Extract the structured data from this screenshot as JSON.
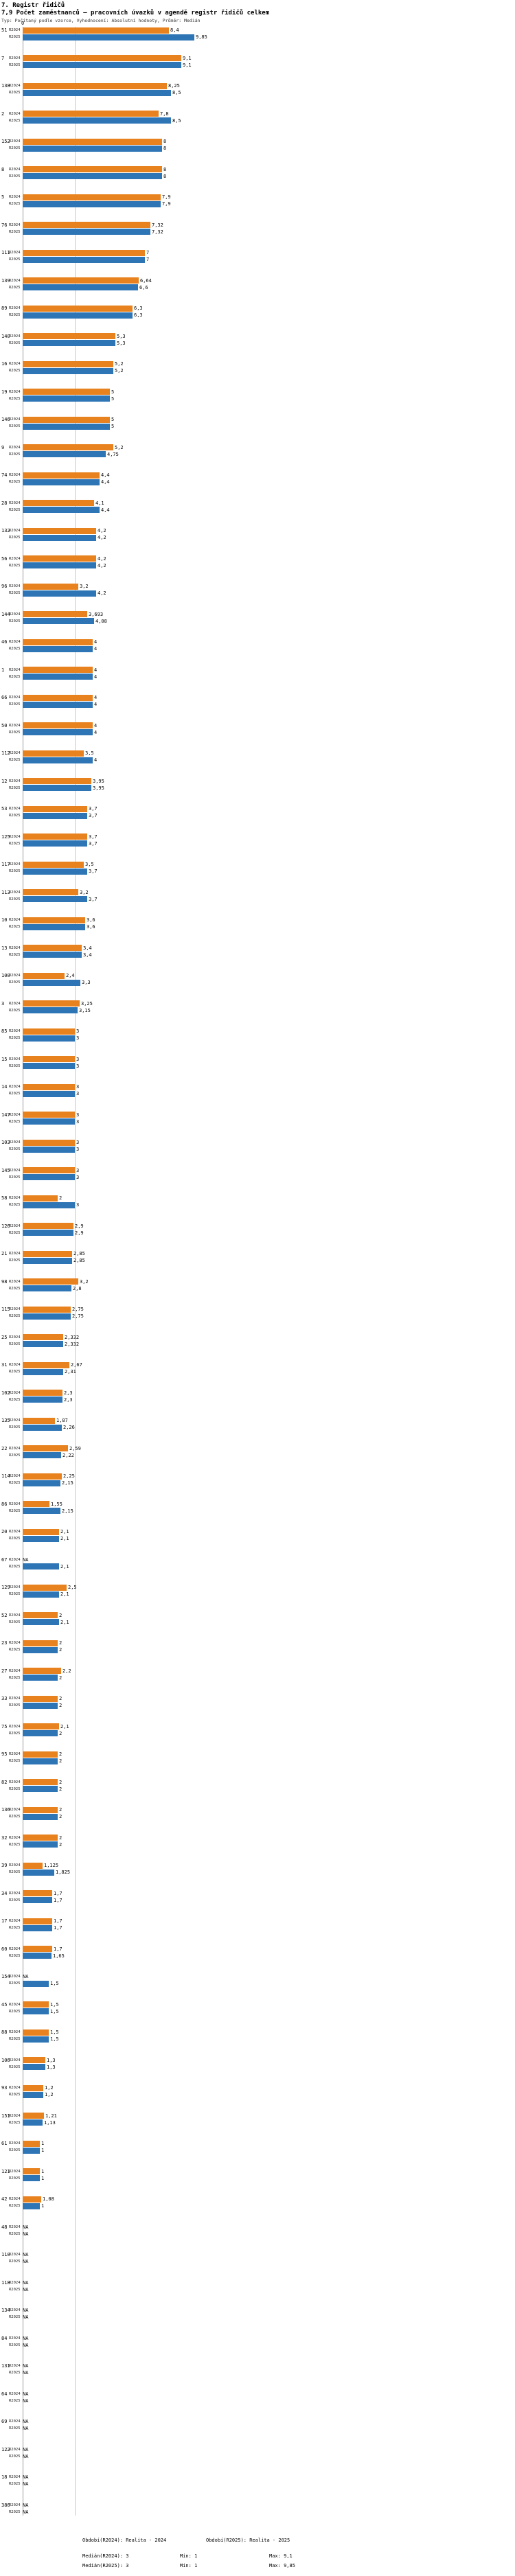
{
  "header": {
    "title": "7. Registr řidičů",
    "subtitle": "7,9 Počet zaměstnanců – pracovních úvazků v agendě registr řidičů celkem",
    "meta": "Typ: Počítaný podle vzorce, Vyhodnocení: Absolutní hodnoty, Průměr: Medián"
  },
  "chart_data": {
    "type": "bar",
    "orientation": "horizontal",
    "title": "7,9 Počet zaměstnanců – pracovních úvazků v agendě registr řidičů celkem",
    "xlabel": "",
    "ylabel": "",
    "xlim": [
      0,
      10
    ],
    "series_labels": [
      "R2024",
      "R2025"
    ],
    "colors": {
      "R2024": "#e8821e",
      "R2025": "#2e75b6"
    },
    "axis": {
      "origin_label": "0",
      "median_line_value": 3
    },
    "na_text": "NA",
    "groups": [
      {
        "id": "51",
        "r2024": "8,4",
        "r2025": "9,85"
      },
      {
        "id": "7",
        "r2024": "9,1",
        "r2025": "9,1"
      },
      {
        "id": "138",
        "r2024": "8,25",
        "r2025": "8,5"
      },
      {
        "id": "2",
        "r2024": "7,8",
        "r2025": "8,5"
      },
      {
        "id": "152",
        "r2024": "8",
        "r2025": "8"
      },
      {
        "id": "8",
        "r2024": "8",
        "r2025": "8"
      },
      {
        "id": "5",
        "r2024": "7,9",
        "r2025": "7,9"
      },
      {
        "id": "76",
        "r2024": "7,32",
        "r2025": "7,32"
      },
      {
        "id": "111",
        "r2024": "7",
        "r2025": "7"
      },
      {
        "id": "139",
        "r2024": "6,64",
        "r2025": "6,6"
      },
      {
        "id": "89",
        "r2024": "6,3",
        "r2025": "6,3"
      },
      {
        "id": "140",
        "r2024": "5,3",
        "r2025": "5,3"
      },
      {
        "id": "16",
        "r2024": "5,2",
        "r2025": "5,2"
      },
      {
        "id": "19",
        "r2024": "5",
        "r2025": "5"
      },
      {
        "id": "146",
        "r2024": "5",
        "r2025": "5"
      },
      {
        "id": "9",
        "r2024": "5,2",
        "r2025": "4,75"
      },
      {
        "id": "74",
        "r2024": "4,4",
        "r2025": "4,4"
      },
      {
        "id": "28",
        "r2024": "4,1",
        "r2025": "4,4"
      },
      {
        "id": "132",
        "r2024": "4,2",
        "r2025": "4,2"
      },
      {
        "id": "56",
        "r2024": "4,2",
        "r2025": "4,2"
      },
      {
        "id": "96",
        "r2024": "3,2",
        "r2025": "4,2"
      },
      {
        "id": "144",
        "r2024": "3,693",
        "r2025": "4,08"
      },
      {
        "id": "46",
        "r2024": "4",
        "r2025": "4"
      },
      {
        "id": "1",
        "r2024": "4",
        "r2025": "4"
      },
      {
        "id": "66",
        "r2024": "4",
        "r2025": "4"
      },
      {
        "id": "50",
        "r2024": "4",
        "r2025": "4"
      },
      {
        "id": "112",
        "r2024": "3,5",
        "r2025": "4"
      },
      {
        "id": "12",
        "r2024": "3,95",
        "r2025": "3,95"
      },
      {
        "id": "53",
        "r2024": "3,7",
        "r2025": "3,7"
      },
      {
        "id": "125",
        "r2024": "3,7",
        "r2025": "3,7"
      },
      {
        "id": "117",
        "r2024": "3,5",
        "r2025": "3,7"
      },
      {
        "id": "113",
        "r2024": "3,2",
        "r2025": "3,7"
      },
      {
        "id": "10",
        "r2024": "3,6",
        "r2025": "3,6"
      },
      {
        "id": "13",
        "r2024": "3,4",
        "r2025": "3,4"
      },
      {
        "id": "100",
        "r2024": "2,4",
        "r2025": "3,3"
      },
      {
        "id": "3",
        "r2024": "3,25",
        "r2025": "3,15"
      },
      {
        "id": "85",
        "r2024": "3",
        "r2025": "3"
      },
      {
        "id": "15",
        "r2024": "3",
        "r2025": "3"
      },
      {
        "id": "14",
        "r2024": "3",
        "r2025": "3"
      },
      {
        "id": "147",
        "r2024": "3",
        "r2025": "3"
      },
      {
        "id": "103",
        "r2024": "3",
        "r2025": "3"
      },
      {
        "id": "145",
        "r2024": "3",
        "r2025": "3"
      },
      {
        "id": "58",
        "r2024": "2",
        "r2025": "3"
      },
      {
        "id": "126",
        "r2024": "2,9",
        "r2025": "2,9"
      },
      {
        "id": "21",
        "r2024": "2,85",
        "r2025": "2,85"
      },
      {
        "id": "98",
        "r2024": "3,2",
        "r2025": "2,8"
      },
      {
        "id": "115",
        "r2024": "2,75",
        "r2025": "2,75"
      },
      {
        "id": "25",
        "r2024": "2,332",
        "r2025": "2,332"
      },
      {
        "id": "31",
        "r2024": "2,67",
        "r2025": "2,31"
      },
      {
        "id": "102",
        "r2024": "2,3",
        "r2025": "2,3"
      },
      {
        "id": "135",
        "r2024": "1,87",
        "r2025": "2,26"
      },
      {
        "id": "22",
        "r2024": "2,59",
        "r2025": "2,22"
      },
      {
        "id": "114",
        "r2024": "2,25",
        "r2025": "2,15"
      },
      {
        "id": "86",
        "r2024": "1,55",
        "r2025": "2,15"
      },
      {
        "id": "20",
        "r2024": "2,1",
        "r2025": "2,1"
      },
      {
        "id": "67",
        "r2024": "NA",
        "r2025": "2,1"
      },
      {
        "id": "129",
        "r2024": "2,5",
        "r2025": "2,1"
      },
      {
        "id": "52",
        "r2024": "2",
        "r2025": "2,1"
      },
      {
        "id": "23",
        "r2024": "2",
        "r2025": "2"
      },
      {
        "id": "27",
        "r2024": "2,2",
        "r2025": "2"
      },
      {
        "id": "33",
        "r2024": "2",
        "r2025": "2"
      },
      {
        "id": "75",
        "r2024": "2,1",
        "r2025": "2"
      },
      {
        "id": "95",
        "r2024": "2",
        "r2025": "2"
      },
      {
        "id": "82",
        "r2024": "2",
        "r2025": "2"
      },
      {
        "id": "136",
        "r2024": "2",
        "r2025": "2"
      },
      {
        "id": "32",
        "r2024": "2",
        "r2025": "2"
      },
      {
        "id": "39",
        "r2024": "1,125",
        "r2025": "1,825"
      },
      {
        "id": "34",
        "r2024": "1,7",
        "r2025": "1,7"
      },
      {
        "id": "17",
        "r2024": "1,7",
        "r2025": "1,7"
      },
      {
        "id": "60",
        "r2024": "1,7",
        "r2025": "1,65"
      },
      {
        "id": "154",
        "r2024": "NA",
        "r2025": "1,5"
      },
      {
        "id": "45",
        "r2024": "1,5",
        "r2025": "1,5"
      },
      {
        "id": "88",
        "r2024": "1,5",
        "r2025": "1,5"
      },
      {
        "id": "106",
        "r2024": "1,3",
        "r2025": "1,3"
      },
      {
        "id": "93",
        "r2024": "1,2",
        "r2025": "1,2"
      },
      {
        "id": "151",
        "r2024": "1,21",
        "r2025": "1,13"
      },
      {
        "id": "61",
        "r2024": "1",
        "r2025": "1"
      },
      {
        "id": "121",
        "r2024": "1",
        "r2025": "1"
      },
      {
        "id": "42",
        "r2024": "1,08",
        "r2025": "1"
      },
      {
        "id": "48",
        "r2024": "NA",
        "r2025": "NA"
      },
      {
        "id": "110",
        "r2024": "NA",
        "r2025": "NA"
      },
      {
        "id": "118",
        "r2024": "NA",
        "r2025": "NA"
      },
      {
        "id": "134",
        "r2024": "NA",
        "r2025": "NA"
      },
      {
        "id": "84",
        "r2024": "NA",
        "r2025": "NA"
      },
      {
        "id": "131",
        "r2024": "NA",
        "r2025": "NA"
      },
      {
        "id": "64",
        "r2024": "NA",
        "r2025": "NA"
      },
      {
        "id": "69",
        "r2024": "NA",
        "r2025": "NA"
      },
      {
        "id": "122",
        "r2024": "NA",
        "r2025": "NA"
      },
      {
        "id": "18",
        "r2024": "NA",
        "r2025": "NA"
      },
      {
        "id": "386",
        "r2024": "NA",
        "r2025": "NA"
      }
    ]
  },
  "footer": {
    "period_2024": "Období(R2024): Realita - 2024",
    "period_2025": "Období(R2025): Realita - 2025",
    "median_2024": "Medián(R2024): 3",
    "min_2024": "Min: 1",
    "max_2024": "Max: 9,1",
    "median_2025": "Medián(R2025): 3",
    "min_2025": "Min: 1",
    "max_2025": "Max: 9,85"
  }
}
